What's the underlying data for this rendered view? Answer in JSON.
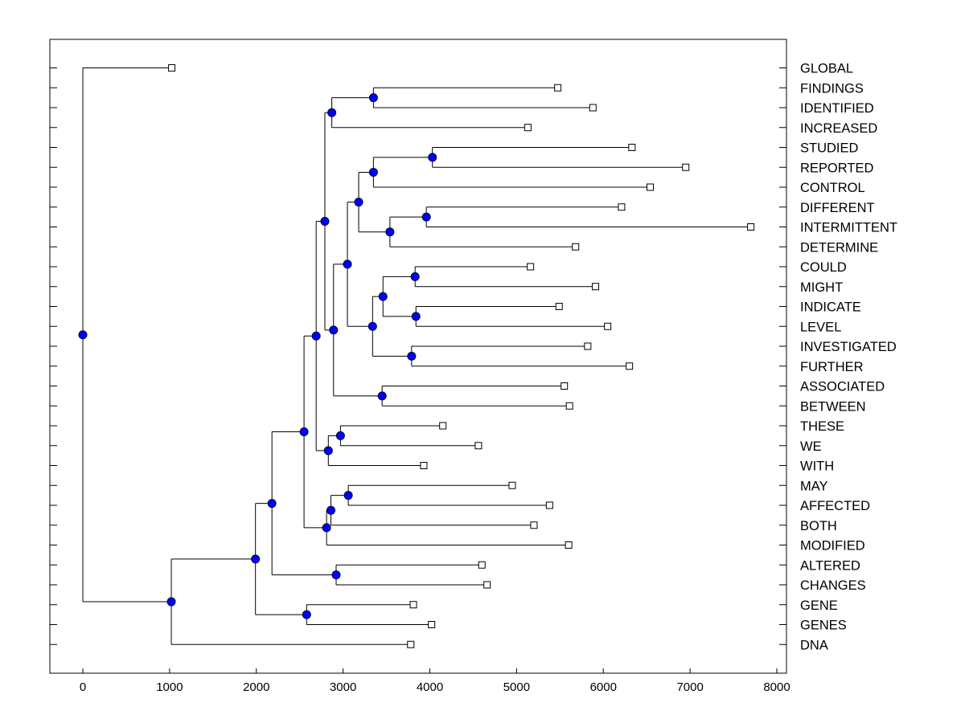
{
  "chart_data": {
    "type": "dendrogram",
    "title": "",
    "xlabel": "",
    "ylabel": "",
    "xlim": [
      -375,
      8000
    ],
    "x_ticks": [
      0,
      1000,
      2000,
      3000,
      4000,
      5000,
      6000,
      7000,
      8000
    ],
    "x_tick_labels": [
      "0",
      "1000",
      "2000",
      "3000",
      "4000",
      "5000",
      "6000",
      "7000",
      "8000"
    ],
    "grid": false,
    "legend": "none",
    "colors": {
      "node_fill": "#0000ff",
      "node_stroke": "#000033",
      "line": "#000000",
      "leaf_fill": "#ffffff"
    },
    "leaves": [
      {
        "label": "GLOBAL",
        "value": 1025
      },
      {
        "label": "FINDINGS",
        "value": 5475
      },
      {
        "label": "IDENTIFIED",
        "value": 5880
      },
      {
        "label": "INCREASED",
        "value": 5130
      },
      {
        "label": "STUDIED",
        "value": 6330
      },
      {
        "label": "REPORTED",
        "value": 6950
      },
      {
        "label": "CONTROL",
        "value": 6540
      },
      {
        "label": "DIFFERENT",
        "value": 6210
      },
      {
        "label": "INTERMITTENT",
        "value": 7700
      },
      {
        "label": "DETERMINE",
        "value": 5680
      },
      {
        "label": "COULD",
        "value": 5160
      },
      {
        "label": "MIGHT",
        "value": 5910
      },
      {
        "label": "INDICATE",
        "value": 5490
      },
      {
        "label": "LEVEL",
        "value": 6050
      },
      {
        "label": "INVESTIGATED",
        "value": 5820
      },
      {
        "label": "FURTHER",
        "value": 6300
      },
      {
        "label": "ASSOCIATED",
        "value": 5550
      },
      {
        "label": "BETWEEN",
        "value": 5610
      },
      {
        "label": "THESE",
        "value": 4150
      },
      {
        "label": "WE",
        "value": 4560
      },
      {
        "label": "WITH",
        "value": 3930
      },
      {
        "label": "MAY",
        "value": 4950
      },
      {
        "label": "AFFECTED",
        "value": 5380
      },
      {
        "label": "BOTH",
        "value": 5200
      },
      {
        "label": "MODIFIED",
        "value": 5600
      },
      {
        "label": "ALTERED",
        "value": 4600
      },
      {
        "label": "CHANGES",
        "value": 4660
      },
      {
        "label": "GENE",
        "value": 3810
      },
      {
        "label": "GENES",
        "value": 4020
      },
      {
        "label": "DNA",
        "value": 3780
      }
    ],
    "nodes": [
      {
        "id": "n_findings_identified",
        "value": 3350,
        "children": [
          "L1",
          "L2"
        ]
      },
      {
        "id": "n_fi_increased",
        "value": 2870,
        "children": [
          "n_findings_identified",
          "L3"
        ]
      },
      {
        "id": "n_studied_reported",
        "value": 4030,
        "children": [
          "L4",
          "L5"
        ]
      },
      {
        "id": "n_sr_control",
        "value": 3350,
        "children": [
          "n_studied_reported",
          "L6"
        ]
      },
      {
        "id": "n_different_intermittent",
        "value": 3960,
        "children": [
          "L7",
          "L8"
        ]
      },
      {
        "id": "n_di_determine",
        "value": 3540,
        "children": [
          "n_different_intermittent",
          "L9"
        ]
      },
      {
        "id": "n_src_did",
        "value": 3180,
        "children": [
          "n_sr_control",
          "n_di_determine"
        ]
      },
      {
        "id": "n_could_might",
        "value": 3830,
        "children": [
          "L10",
          "L11"
        ]
      },
      {
        "id": "n_indicate_level",
        "value": 3840,
        "children": [
          "L12",
          "L13"
        ]
      },
      {
        "id": "n_cm_il",
        "value": 3460,
        "children": [
          "n_could_might",
          "n_indicate_level"
        ]
      },
      {
        "id": "n_investigated_further",
        "value": 3790,
        "children": [
          "L14",
          "L15"
        ]
      },
      {
        "id": "n_cmil_if",
        "value": 3340,
        "children": [
          "n_cm_il",
          "n_investigated_further"
        ]
      },
      {
        "id": "n_mid_group",
        "value": 3050,
        "children": [
          "n_src_did",
          "n_cmil_if"
        ]
      },
      {
        "id": "n_associated_between",
        "value": 3450,
        "children": [
          "L16",
          "L17"
        ]
      },
      {
        "id": "n_mid_ab",
        "value": 2890,
        "children": [
          "n_mid_group",
          "n_associated_between"
        ]
      },
      {
        "id": "n_upper",
        "value": 2790,
        "children": [
          "n_fi_increased",
          "n_mid_ab"
        ]
      },
      {
        "id": "n_these_we",
        "value": 2970,
        "children": [
          "L18",
          "L19"
        ]
      },
      {
        "id": "n_tw_with",
        "value": 2830,
        "children": [
          "n_these_we",
          "L20"
        ]
      },
      {
        "id": "n_upper_tww",
        "value": 2690,
        "children": [
          "n_upper",
          "n_tw_with"
        ]
      },
      {
        "id": "n_may_affected",
        "value": 3060,
        "children": [
          "L21",
          "L22"
        ]
      },
      {
        "id": "n_ma_both",
        "value": 2860,
        "children": [
          "n_may_affected",
          "L23"
        ]
      },
      {
        "id": "n_mab_modified",
        "value": 2810,
        "children": [
          "n_ma_both",
          "L24"
        ]
      },
      {
        "id": "n_big",
        "value": 2550,
        "children": [
          "n_upper_tww",
          "n_mab_modified"
        ]
      },
      {
        "id": "n_altered_changes",
        "value": 2920,
        "children": [
          "L25",
          "L26"
        ]
      },
      {
        "id": "n_big_ac",
        "value": 2180,
        "children": [
          "n_big",
          "n_altered_changes"
        ]
      },
      {
        "id": "n_gene_genes",
        "value": 2580,
        "children": [
          "L27",
          "L28"
        ]
      },
      {
        "id": "n_bigac_gg",
        "value": 1990,
        "children": [
          "n_big_ac",
          "n_gene_genes"
        ]
      },
      {
        "id": "n_with_dna",
        "value": 1020,
        "children": [
          "n_bigac_gg",
          "L29"
        ]
      },
      {
        "id": "n_root",
        "value": 0,
        "children": [
          "L0",
          "n_with_dna"
        ]
      }
    ]
  }
}
